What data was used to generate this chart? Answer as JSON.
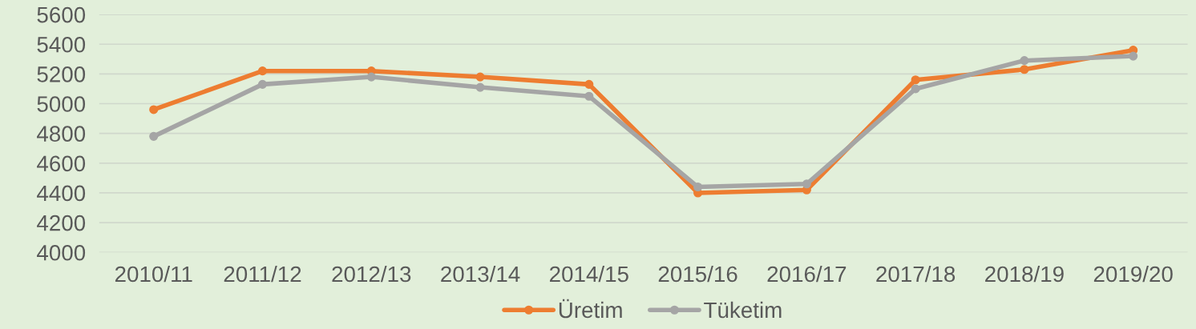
{
  "chart_data": {
    "type": "line",
    "categories": [
      "2010/11",
      "2011/12",
      "2012/13",
      "2013/14",
      "2014/15",
      "2015/16",
      "2016/17",
      "2017/18",
      "2018/19",
      "2019/20"
    ],
    "series": [
      {
        "name": "Üretim",
        "color": "#ed7d31",
        "values": [
          4960,
          5220,
          5220,
          5180,
          5130,
          4400,
          4420,
          5160,
          5230,
          5360
        ]
      },
      {
        "name": "Tüketim",
        "color": "#a5a5a5",
        "values": [
          4780,
          5130,
          5180,
          5110,
          5050,
          4440,
          4460,
          5100,
          5290,
          5320
        ]
      }
    ],
    "ylim": [
      4000,
      5600
    ],
    "yticks": [
      4000,
      4200,
      4400,
      4600,
      4800,
      5000,
      5200,
      5400,
      5600
    ],
    "grid": "y",
    "legend": "bottom",
    "marker": "circle",
    "line_style": "solid"
  }
}
